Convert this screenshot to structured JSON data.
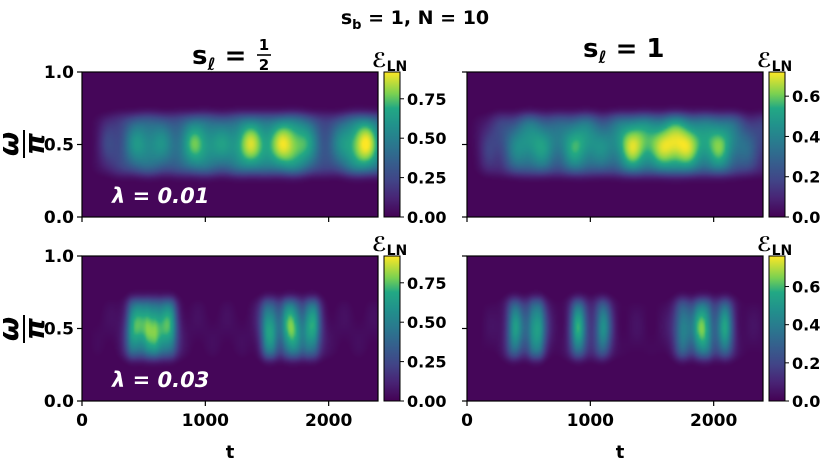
{
  "chart_data": {
    "type": "heatmap",
    "suptitle": "s_b = 1, N = 10",
    "suptitle_parts": {
      "s": "s",
      "sub_b": "b",
      "eq1": " = 1,  N = 10"
    },
    "column_titles": [
      {
        "label": "s",
        "sub": "ℓ",
        "eq": " = ",
        "frac_num": "1",
        "frac_den": "2"
      },
      {
        "label": "s",
        "sub": "ℓ",
        "eq": " = 1",
        "frac_num": "",
        "frac_den": ""
      }
    ],
    "ylabel": {
      "num": "ω",
      "den": "π"
    },
    "xlabel": "t",
    "x_range": [
      0,
      2400
    ],
    "y_range": [
      0.0,
      1.0
    ],
    "x_ticks": [
      "0",
      "1000",
      "2000"
    ],
    "y_ticks": [
      "0.0",
      "0.5",
      "1.0"
    ],
    "colorbar_label": "ℰ",
    "colorbar_sub": "LN",
    "colormap": "viridis",
    "panels": [
      {
        "row": 0,
        "col": 0,
        "lambda_label": "λ = 0.01",
        "cbar_ticks": [
          "0.00",
          "0.25",
          "0.50",
          "0.75"
        ],
        "cbar_max": 0.92,
        "blobs_t": [
          520,
          950,
          1350,
          1700,
          2280
        ],
        "blobs_amp": [
          0.55,
          0.7,
          0.8,
          0.92,
          0.95
        ],
        "onset": 150
      },
      {
        "row": 0,
        "col": 1,
        "lambda_label": "",
        "cbar_ticks": [
          "0.0",
          "0.2",
          "0.4",
          "0.6"
        ],
        "cbar_max": 0.72,
        "blobs_t": [
          520,
          920,
          1350,
          1700,
          2050
        ],
        "blobs_amp": [
          0.6,
          0.65,
          0.85,
          1.0,
          0.7
        ],
        "onset": 120
      },
      {
        "row": 1,
        "col": 0,
        "lambda_label": "λ = 0.03",
        "cbar_ticks": [
          "0.00",
          "0.25",
          "0.50",
          "0.75"
        ],
        "cbar_max": 0.92,
        "blobs_t": [
          420,
          560,
          700,
          1520,
          1700,
          1870
        ],
        "blobs_amp": [
          0.85,
          1.0,
          0.85,
          0.85,
          1.0,
          0.85
        ],
        "onset": 60
      },
      {
        "row": 1,
        "col": 1,
        "lambda_label": "",
        "cbar_ticks": [
          "0.0",
          "0.2",
          "0.4",
          "0.6"
        ],
        "cbar_max": 0.76,
        "blobs_t": [
          380,
          560,
          900,
          1100,
          1750,
          1920,
          2100
        ],
        "blobs_amp": [
          0.75,
          0.9,
          0.8,
          0.7,
          0.7,
          1.0,
          0.75
        ],
        "onset": 60
      }
    ]
  }
}
